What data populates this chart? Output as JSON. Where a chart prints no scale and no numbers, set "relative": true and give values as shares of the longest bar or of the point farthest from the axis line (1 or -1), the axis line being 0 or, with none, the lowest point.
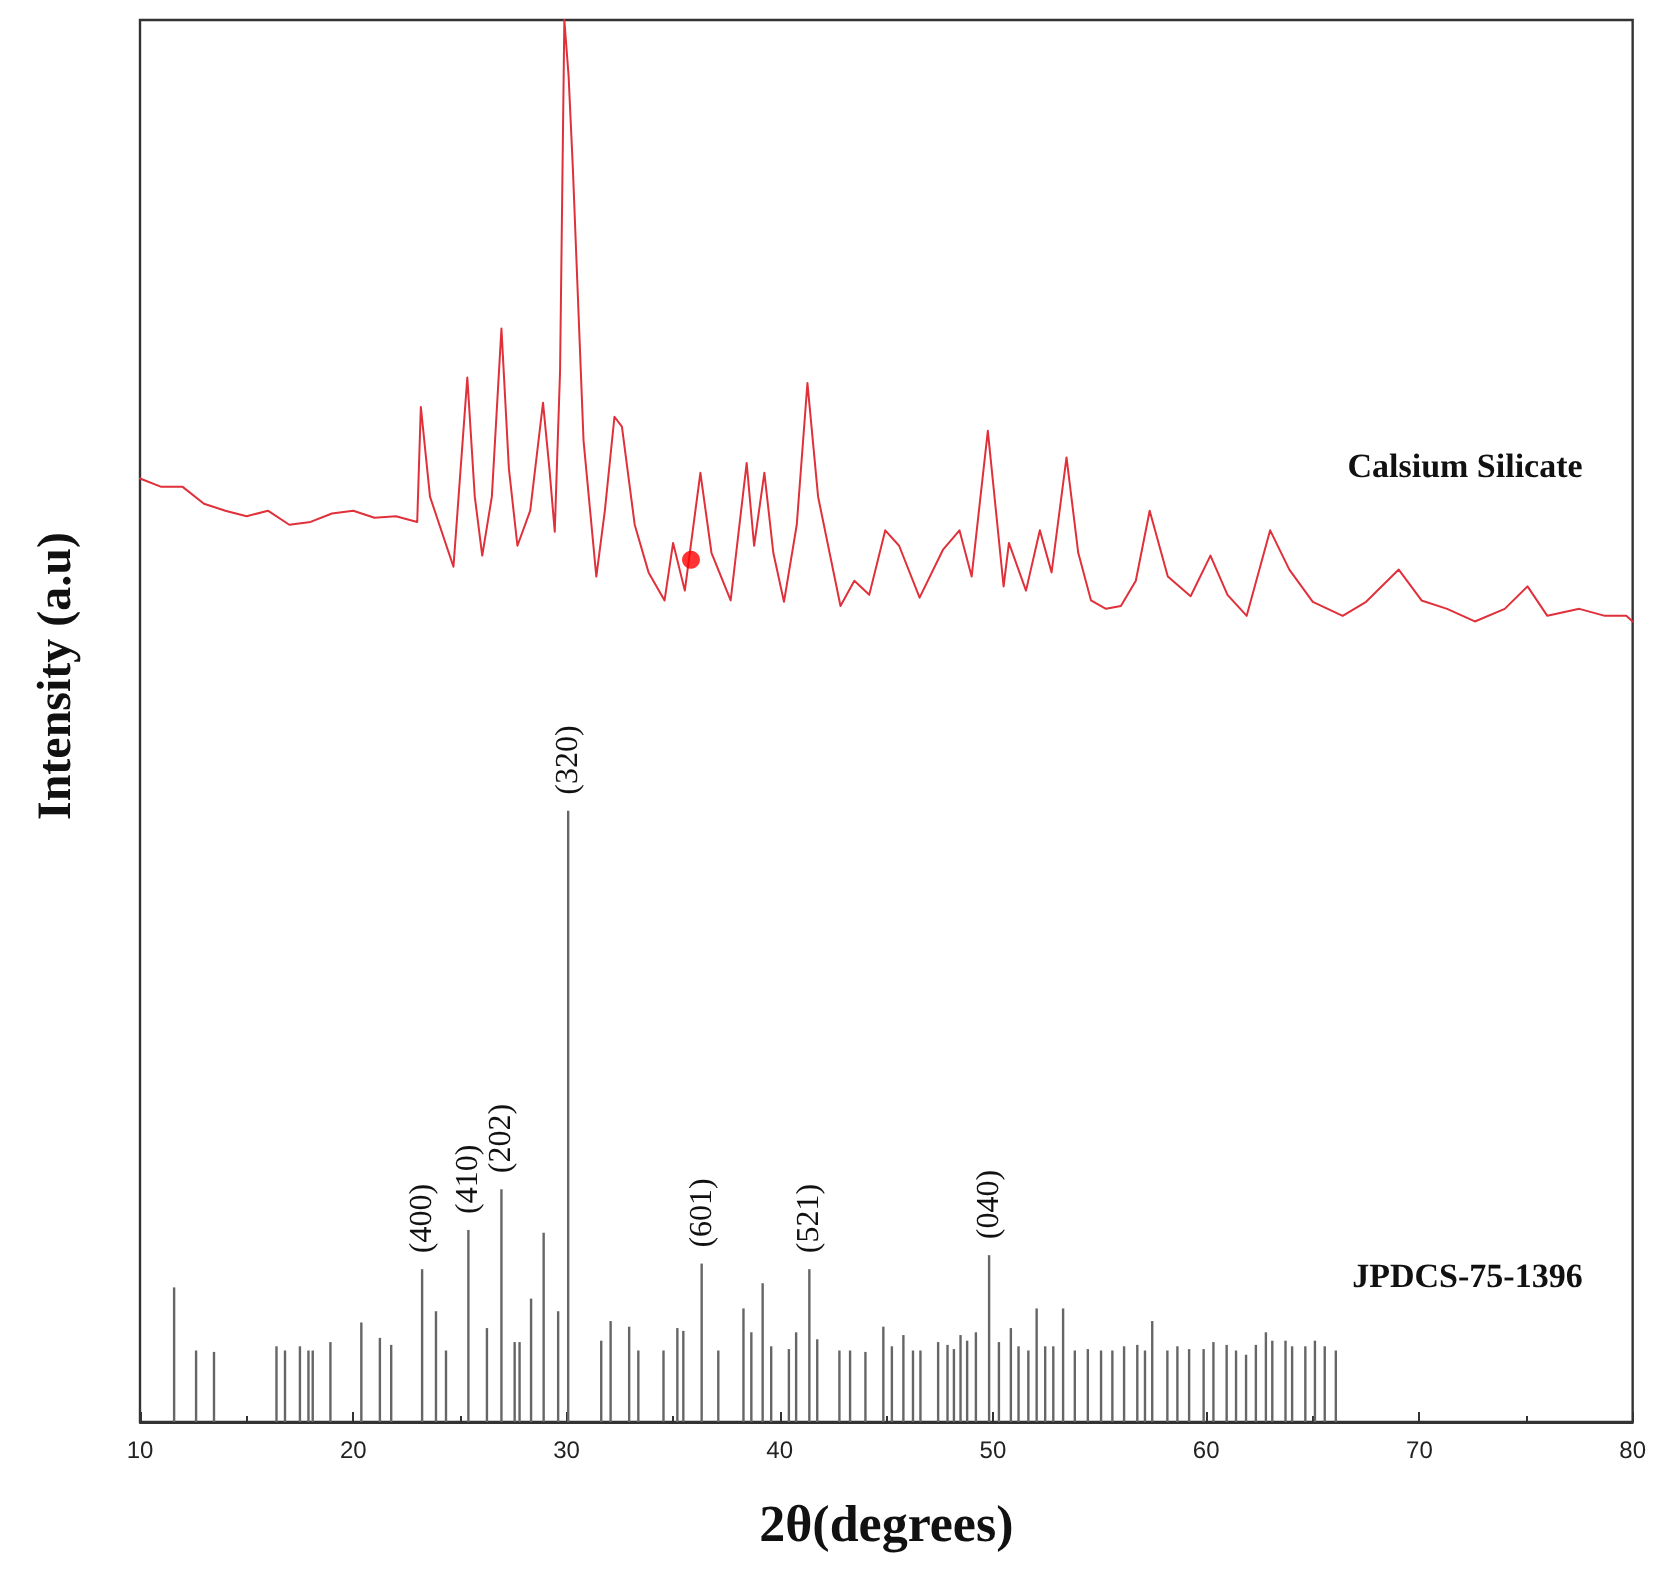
{
  "chart_data": {
    "type": "line",
    "relative": true,
    "xlabel": "2θ(degrees)",
    "ylabel": "Intensity (a.u)",
    "xlim": [
      10,
      80
    ],
    "xticks": [
      10,
      20,
      30,
      40,
      50,
      60,
      70,
      80
    ],
    "tick_labels": "x",
    "grid": false,
    "legend": false,
    "line_style": "solid",
    "series": [
      {
        "name": "Calsium Silicate",
        "color": "#e0303a",
        "x": [
          10,
          11,
          12,
          13,
          14,
          15,
          16,
          17,
          18,
          19,
          20,
          21,
          22,
          23,
          23.17,
          23.6,
          24.7,
          25.35,
          25.7,
          26.05,
          26.5,
          26.95,
          27.3,
          27.7,
          28.3,
          28.9,
          29.2,
          29.45,
          29.7,
          29.9,
          30.1,
          30.3,
          30.8,
          31.4,
          31.8,
          32.25,
          32.6,
          33.2,
          33.85,
          34.6,
          35,
          35.55,
          36.28,
          36.8,
          37.7,
          38.45,
          38.8,
          39.28,
          39.7,
          40.2,
          40.8,
          41.3,
          41.8,
          42.85,
          43.5,
          44.2,
          44.95,
          45.6,
          46.56,
          47.65,
          48.43,
          49,
          49.76,
          50.5,
          50.75,
          51.55,
          52.2,
          52.75,
          53.45,
          54,
          54.6,
          55.3,
          56,
          56.7,
          57.35,
          58.2,
          59.27,
          60.2,
          61,
          61.9,
          63,
          63.9,
          65,
          66.4,
          67.5,
          69.03,
          70.1,
          71.3,
          72.6,
          74,
          75.07,
          76,
          77.5,
          78.7,
          79.7,
          80
        ],
        "values": [
          0.673,
          0.667,
          0.667,
          0.655,
          0.65,
          0.646,
          0.65,
          0.64,
          0.642,
          0.648,
          0.65,
          0.645,
          0.646,
          0.642,
          0.724,
          0.66,
          0.61,
          0.745,
          0.66,
          0.618,
          0.66,
          0.78,
          0.68,
          0.625,
          0.65,
          0.727,
          0.68,
          0.635,
          0.75,
          1.0,
          0.96,
          0.894,
          0.7,
          0.603,
          0.65,
          0.717,
          0.71,
          0.64,
          0.606,
          0.586,
          0.627,
          0.593,
          0.677,
          0.62,
          0.586,
          0.684,
          0.625,
          0.677,
          0.62,
          0.585,
          0.64,
          0.741,
          0.66,
          0.582,
          0.6,
          0.59,
          0.636,
          0.625,
          0.588,
          0.622,
          0.636,
          0.603,
          0.707,
          0.596,
          0.627,
          0.593,
          0.636,
          0.606,
          0.688,
          0.62,
          0.586,
          0.58,
          0.582,
          0.6,
          0.65,
          0.603,
          0.589,
          0.618,
          0.59,
          0.575,
          0.636,
          0.608,
          0.585,
          0.575,
          0.585,
          0.608,
          0.586,
          0.58,
          0.571,
          0.58,
          0.596,
          0.575,
          0.58,
          0.575,
          0.575,
          0.571
        ]
      },
      {
        "name": "JPDCS-75-1396",
        "type": "bar",
        "color": "#666666",
        "x": [
          11.6,
          12.63,
          13.47,
          16.4,
          16.8,
          17.5,
          17.9,
          18.1,
          18.93,
          20.38,
          21.25,
          21.78,
          23.23,
          23.88,
          24.35,
          25.4,
          26.27,
          26.95,
          27.57,
          27.8,
          28.34,
          28.93,
          29.61,
          30.08,
          31.63,
          32.07,
          32.94,
          33.37,
          34.55,
          35.2,
          35.48,
          36.34,
          37.12,
          38.3,
          38.67,
          39.2,
          39.6,
          40.43,
          40.77,
          41.39,
          41.76,
          42.8,
          43.3,
          44.02,
          44.86,
          45.26,
          45.8,
          46.25,
          46.6,
          47.43,
          47.87,
          48.17,
          48.48,
          48.79,
          49.2,
          49.82,
          50.28,
          50.84,
          51.2,
          51.66,
          52.05,
          52.45,
          52.83,
          53.29,
          53.84,
          54.45,
          55.07,
          55.6,
          56.15,
          56.77,
          57.13,
          57.47,
          58.18,
          58.65,
          59.2,
          59.88,
          60.34,
          60.96,
          61.4,
          61.87,
          62.33,
          62.8,
          63.1,
          63.72,
          64.03,
          64.65,
          65.1,
          65.56,
          66.08
        ],
        "values": [
          0.096,
          0.051,
          0.05,
          0.054,
          0.051,
          0.054,
          0.051,
          0.051,
          0.057,
          0.071,
          0.06,
          0.055,
          0.109,
          0.079,
          0.051,
          0.137,
          0.067,
          0.166,
          0.057,
          0.057,
          0.088,
          0.135,
          0.079,
          0.436,
          0.058,
          0.072,
          0.068,
          0.051,
          0.051,
          0.067,
          0.065,
          0.113,
          0.051,
          0.081,
          0.064,
          0.099,
          0.054,
          0.052,
          0.064,
          0.109,
          0.059,
          0.051,
          0.051,
          0.05,
          0.068,
          0.054,
          0.062,
          0.051,
          0.051,
          0.057,
          0.055,
          0.052,
          0.062,
          0.058,
          0.064,
          0.119,
          0.057,
          0.067,
          0.054,
          0.051,
          0.081,
          0.054,
          0.054,
          0.081,
          0.051,
          0.052,
          0.051,
          0.051,
          0.054,
          0.055,
          0.051,
          0.072,
          0.051,
          0.054,
          0.052,
          0.052,
          0.057,
          0.055,
          0.051,
          0.048,
          0.055,
          0.064,
          0.058,
          0.058,
          0.054,
          0.054,
          0.058,
          0.054,
          0.051
        ]
      },
      {
        "type": "scatter",
        "color": "#ff0000",
        "x": [
          35.84
        ],
        "values": [
          0.615
        ]
      }
    ],
    "annotations": [
      {
        "text": "(400)",
        "x": 23.23,
        "y": 0.109
      },
      {
        "text": "(410)",
        "x": 25.4,
        "y": 0.137
      },
      {
        "text": "(202)",
        "x": 26.95,
        "y": 0.166
      },
      {
        "text": "(320)",
        "x": 30.08,
        "y": 0.436
      },
      {
        "text": "(601)",
        "x": 36.34,
        "y": 0.113
      },
      {
        "text": "(521)",
        "x": 41.39,
        "y": 0.109
      },
      {
        "text": "(040)",
        "x": 49.82,
        "y": 0.119
      }
    ]
  }
}
